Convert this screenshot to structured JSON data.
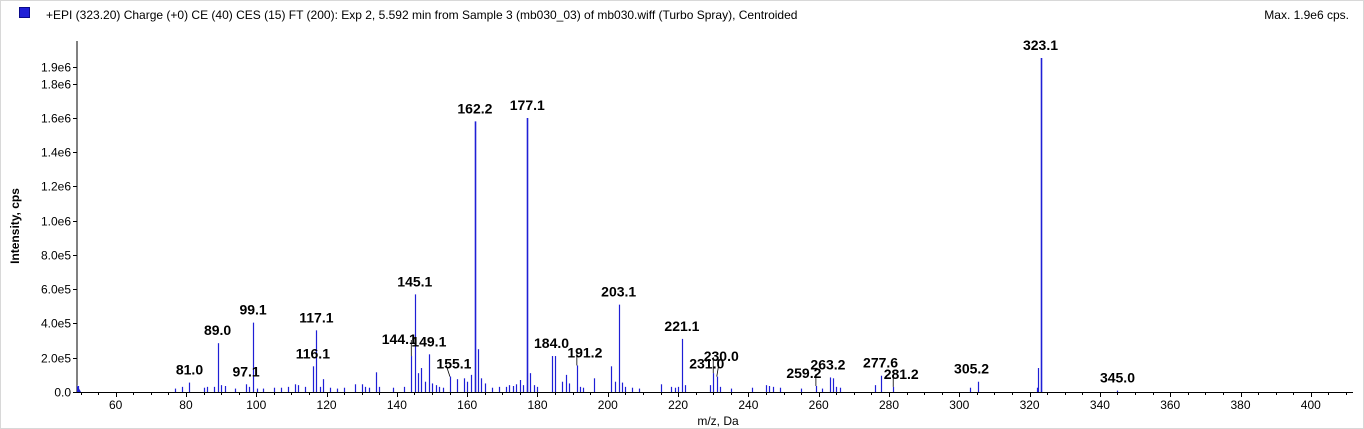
{
  "header": {
    "title": "+EPI (323.20) Charge (+0) CE (40) CES (15) FT (200): Exp 2, 5.592 min from Sample 3 (mb030_03) of mb030.wiff (Turbo Spray), Centroided",
    "max_label": "Max. 1.9e6 cps.",
    "series_color": "#1f1fd6"
  },
  "chart_data": {
    "type": "bar",
    "xlabel": "m/z, Da",
    "ylabel": "Intensity, cps",
    "xlim": [
      49,
      412
    ],
    "ylim": [
      0,
      1950000
    ],
    "x_ticks": [
      60,
      80,
      100,
      120,
      140,
      160,
      180,
      200,
      220,
      240,
      260,
      280,
      300,
      320,
      340,
      360,
      380,
      400
    ],
    "y_ticks": [
      {
        "value": 0,
        "label": "0.0"
      },
      {
        "value": 200000,
        "label": "2.0e5"
      },
      {
        "value": 400000,
        "label": "4.0e5"
      },
      {
        "value": 600000,
        "label": "6.0e5"
      },
      {
        "value": 800000,
        "label": "8.0e5"
      },
      {
        "value": 1000000,
        "label": "1.0e6"
      },
      {
        "value": 1200000,
        "label": "1.2e6"
      },
      {
        "value": 1400000,
        "label": "1.4e6"
      },
      {
        "value": 1600000,
        "label": "1.6e6"
      },
      {
        "value": 1800000,
        "label": "1.8e6"
      },
      {
        "value": 1900000,
        "label": "1.9e6"
      }
    ],
    "peaks": [
      {
        "mz": 49.3,
        "intensity": 35000
      },
      {
        "mz": 77.0,
        "intensity": 20000
      },
      {
        "mz": 79.0,
        "intensity": 30000
      },
      {
        "mz": 81.0,
        "intensity": 55000,
        "label": "81.0"
      },
      {
        "mz": 85.0,
        "intensity": 25000
      },
      {
        "mz": 86.1,
        "intensity": 30000
      },
      {
        "mz": 88.0,
        "intensity": 30000
      },
      {
        "mz": 89.0,
        "intensity": 285000,
        "label": "89.0"
      },
      {
        "mz": 90.0,
        "intensity": 40000
      },
      {
        "mz": 91.0,
        "intensity": 35000
      },
      {
        "mz": 94.0,
        "intensity": 20000
      },
      {
        "mz": 97.1,
        "intensity": 45000,
        "label": "97.1"
      },
      {
        "mz": 98.0,
        "intensity": 30000
      },
      {
        "mz": 99.1,
        "intensity": 405000,
        "label": "99.1"
      },
      {
        "mz": 100.1,
        "intensity": 20000
      },
      {
        "mz": 102.0,
        "intensity": 20000
      },
      {
        "mz": 105.0,
        "intensity": 25000
      },
      {
        "mz": 107.0,
        "intensity": 25000
      },
      {
        "mz": 109.0,
        "intensity": 30000
      },
      {
        "mz": 111.0,
        "intensity": 45000
      },
      {
        "mz": 112.0,
        "intensity": 40000
      },
      {
        "mz": 114.0,
        "intensity": 30000
      },
      {
        "mz": 116.1,
        "intensity": 150000,
        "label": "116.1"
      },
      {
        "mz": 117.1,
        "intensity": 360000,
        "label": "117.1"
      },
      {
        "mz": 118.1,
        "intensity": 30000
      },
      {
        "mz": 119.0,
        "intensity": 75000
      },
      {
        "mz": 121.0,
        "intensity": 25000
      },
      {
        "mz": 123.0,
        "intensity": 20000
      },
      {
        "mz": 125.0,
        "intensity": 25000
      },
      {
        "mz": 128.0,
        "intensity": 45000
      },
      {
        "mz": 130.0,
        "intensity": 45000
      },
      {
        "mz": 131.0,
        "intensity": 30000
      },
      {
        "mz": 132.0,
        "intensity": 25000
      },
      {
        "mz": 134.0,
        "intensity": 115000
      },
      {
        "mz": 135.0,
        "intensity": 30000
      },
      {
        "mz": 139.0,
        "intensity": 25000
      },
      {
        "mz": 142.0,
        "intensity": 30000
      },
      {
        "mz": 144.1,
        "intensity": 210000,
        "label": "144.1"
      },
      {
        "mz": 145.1,
        "intensity": 570000,
        "label": "145.1"
      },
      {
        "mz": 146.0,
        "intensity": 110000
      },
      {
        "mz": 147.0,
        "intensity": 140000
      },
      {
        "mz": 148.0,
        "intensity": 60000
      },
      {
        "mz": 149.1,
        "intensity": 220000,
        "label": "149.1"
      },
      {
        "mz": 150.0,
        "intensity": 50000
      },
      {
        "mz": 151.0,
        "intensity": 40000
      },
      {
        "mz": 152.0,
        "intensity": 30000
      },
      {
        "mz": 153.0,
        "intensity": 25000
      },
      {
        "mz": 155.1,
        "intensity": 90000,
        "label": "155.1"
      },
      {
        "mz": 157.0,
        "intensity": 75000
      },
      {
        "mz": 159.0,
        "intensity": 80000
      },
      {
        "mz": 160.0,
        "intensity": 60000
      },
      {
        "mz": 161.0,
        "intensity": 100000
      },
      {
        "mz": 162.2,
        "intensity": 1580000,
        "label": "162.2"
      },
      {
        "mz": 163.0,
        "intensity": 250000
      },
      {
        "mz": 164.0,
        "intensity": 80000
      },
      {
        "mz": 165.0,
        "intensity": 50000
      },
      {
        "mz": 167.0,
        "intensity": 25000
      },
      {
        "mz": 169.0,
        "intensity": 30000
      },
      {
        "mz": 171.0,
        "intensity": 30000
      },
      {
        "mz": 172.0,
        "intensity": 40000
      },
      {
        "mz": 173.0,
        "intensity": 35000
      },
      {
        "mz": 174.0,
        "intensity": 45000
      },
      {
        "mz": 175.0,
        "intensity": 70000
      },
      {
        "mz": 176.0,
        "intensity": 40000
      },
      {
        "mz": 177.1,
        "intensity": 1600000,
        "label": "177.1"
      },
      {
        "mz": 178.0,
        "intensity": 110000
      },
      {
        "mz": 179.0,
        "intensity": 40000
      },
      {
        "mz": 180.0,
        "intensity": 30000
      },
      {
        "mz": 184.0,
        "intensity": 210000,
        "label": "184.0"
      },
      {
        "mz": 185.0,
        "intensity": 210000
      },
      {
        "mz": 187.0,
        "intensity": 60000
      },
      {
        "mz": 188.0,
        "intensity": 100000
      },
      {
        "mz": 189.0,
        "intensity": 50000
      },
      {
        "mz": 191.2,
        "intensity": 155000,
        "label": "191.2"
      },
      {
        "mz": 192.0,
        "intensity": 30000
      },
      {
        "mz": 193.0,
        "intensity": 25000
      },
      {
        "mz": 196.0,
        "intensity": 80000
      },
      {
        "mz": 201.0,
        "intensity": 150000
      },
      {
        "mz": 202.0,
        "intensity": 60000
      },
      {
        "mz": 203.1,
        "intensity": 510000,
        "label": "203.1"
      },
      {
        "mz": 204.0,
        "intensity": 55000
      },
      {
        "mz": 205.0,
        "intensity": 30000
      },
      {
        "mz": 207.0,
        "intensity": 25000
      },
      {
        "mz": 209.0,
        "intensity": 20000
      },
      {
        "mz": 215.0,
        "intensity": 45000
      },
      {
        "mz": 218.0,
        "intensity": 30000
      },
      {
        "mz": 219.0,
        "intensity": 25000
      },
      {
        "mz": 220.0,
        "intensity": 30000
      },
      {
        "mz": 221.1,
        "intensity": 310000,
        "label": "221.1"
      },
      {
        "mz": 222.0,
        "intensity": 40000
      },
      {
        "mz": 229.0,
        "intensity": 40000
      },
      {
        "mz": 230.0,
        "intensity": 110000,
        "label": "230.0"
      },
      {
        "mz": 231.0,
        "intensity": 90000,
        "label": "231.0"
      },
      {
        "mz": 232.0,
        "intensity": 30000
      },
      {
        "mz": 235.0,
        "intensity": 20000
      },
      {
        "mz": 241.0,
        "intensity": 25000
      },
      {
        "mz": 245.0,
        "intensity": 40000
      },
      {
        "mz": 246.0,
        "intensity": 35000
      },
      {
        "mz": 247.0,
        "intensity": 30000
      },
      {
        "mz": 249.0,
        "intensity": 25000
      },
      {
        "mz": 255.0,
        "intensity": 20000
      },
      {
        "mz": 259.2,
        "intensity": 35000,
        "label": "259.2"
      },
      {
        "mz": 261.0,
        "intensity": 20000
      },
      {
        "mz": 263.2,
        "intensity": 85000,
        "label": "263.2"
      },
      {
        "mz": 264.0,
        "intensity": 80000
      },
      {
        "mz": 265.0,
        "intensity": 30000
      },
      {
        "mz": 266.0,
        "intensity": 25000
      },
      {
        "mz": 276.0,
        "intensity": 40000
      },
      {
        "mz": 277.6,
        "intensity": 95000,
        "label": "277.6"
      },
      {
        "mz": 281.2,
        "intensity": 30000,
        "label": "281.2"
      },
      {
        "mz": 303.0,
        "intensity": 25000
      },
      {
        "mz": 305.2,
        "intensity": 60000,
        "label": "305.2"
      },
      {
        "mz": 322.0,
        "intensity": 25000
      },
      {
        "mz": 322.5,
        "intensity": 140000
      },
      {
        "mz": 323.1,
        "intensity": 1950000,
        "label": "323.1"
      },
      {
        "mz": 345.0,
        "intensity": 8000,
        "label": "345.0"
      }
    ]
  }
}
